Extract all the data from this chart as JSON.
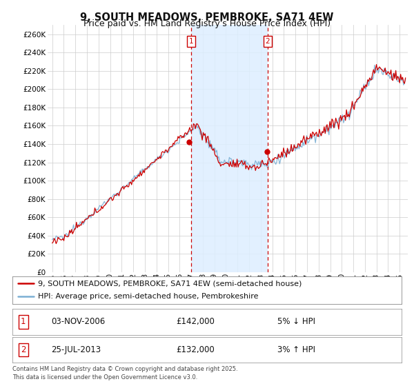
{
  "title": "9, SOUTH MEADOWS, PEMBROKE, SA71 4EW",
  "subtitle": "Price paid vs. HM Land Registry's House Price Index (HPI)",
  "ylim": [
    0,
    270000
  ],
  "yticks": [
    0,
    20000,
    40000,
    60000,
    80000,
    100000,
    120000,
    140000,
    160000,
    180000,
    200000,
    220000,
    240000,
    260000
  ],
  "xlim_start": 1994.6,
  "xlim_end": 2025.7,
  "background_color": "#ffffff",
  "plot_bg_color": "#ffffff",
  "grid_color": "#cccccc",
  "line1_color": "#cc0000",
  "line2_color": "#7bafd4",
  "vline_color": "#cc0000",
  "vline1_x": 2007.0,
  "vline2_x": 2013.6,
  "shade_color": "#ddeeff",
  "marker1_label": "1",
  "marker2_label": "2",
  "marker_box_color": "#cc0000",
  "dot1_x": 2006.84,
  "dot1_y": 142000,
  "dot2_x": 2013.56,
  "dot2_y": 132000,
  "legend_label1": "9, SOUTH MEADOWS, PEMBROKE, SA71 4EW (semi-detached house)",
  "legend_label2": "HPI: Average price, semi-detached house, Pembrokeshire",
  "table_row1": [
    "1",
    "03-NOV-2006",
    "£142,000",
    "5% ↓ HPI"
  ],
  "table_row2": [
    "2",
    "25-JUL-2013",
    "£132,000",
    "3% ↑ HPI"
  ],
  "footer": "Contains HM Land Registry data © Crown copyright and database right 2025.\nThis data is licensed under the Open Government Licence v3.0.",
  "title_fontsize": 10.5,
  "subtitle_fontsize": 9,
  "tick_fontsize": 7.5,
  "legend_fontsize": 8,
  "table_fontsize": 8.5
}
